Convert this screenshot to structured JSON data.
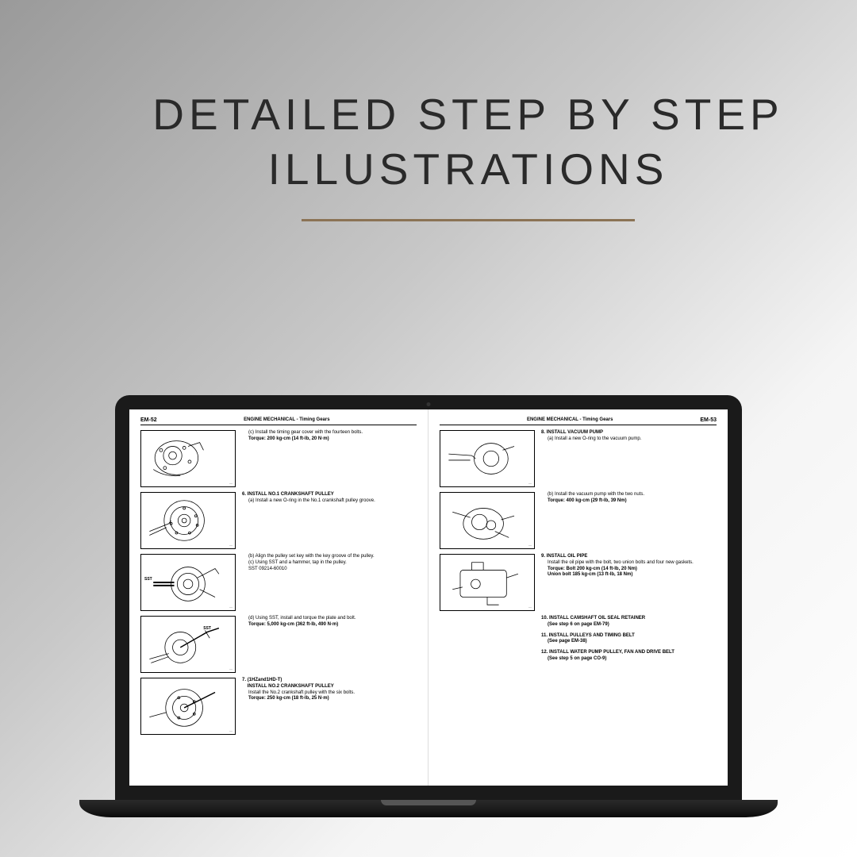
{
  "headline": {
    "line1": "DETAILED STEP BY STEP",
    "line2": "ILLUSTRATIONS"
  },
  "colors": {
    "bg_gradient_start": "#9a9a9a",
    "bg_gradient_end": "#ffffff",
    "underline": "#8b7355",
    "laptop_frame": "#1a1a1a",
    "text": "#2a2a2a"
  },
  "leftPage": {
    "pageNum": "EM-52",
    "title": "ENGINE MECHANICAL - Timing Gears",
    "steps": [
      {
        "diagram": true,
        "lines": [
          "(c)  Install the timing gear cover with the fourteen bolts.",
          "<b>Torque:   200 kg-cm (14 ft-lb, 20 N·m)</b>"
        ]
      },
      {
        "diagram": true,
        "num": "6.",
        "title": "INSTALL NO.1 CRANKSHAFT PULLEY",
        "lines": [
          "(a)  Install a new O-ring in the No.1 crankshaft pulley groove."
        ]
      },
      {
        "diagram": true,
        "sst": "SST",
        "sstPos": "left",
        "lines": [
          "(b)  Align the pulley set key with the key groove of the pulley.",
          "(c)  Using SST and a hammer, tap in the pulley.",
          "SST 09214-60010"
        ]
      },
      {
        "diagram": true,
        "sst": "SST",
        "sstPos": "right",
        "lines": [
          "(d)  Using SST, install and torque the plate and bolt.",
          "<b>Torque:   5,000 kg-cm (362 ft-lb, 490 N·m)</b>"
        ]
      },
      {
        "diagram": true,
        "num": "7.",
        "pretitle": "(1HZand1HD-T)",
        "title": "INSTALL NO.2 CRANKSHAFT PULLEY",
        "lines": [
          "Install the No.2 crankshaft pulley with the six bolts.",
          "<b>Torque:   250 kg-cm (18 ft-lb, 25 N·m)</b>"
        ]
      }
    ]
  },
  "rightPage": {
    "pageNum": "EM-53",
    "title": "ENGINE MECHANICAL - Timing Gears",
    "steps": [
      {
        "diagram": true,
        "num": "8.",
        "title": "INSTALL VACUUM PUMP",
        "lines": [
          "(a)  Install a new O-ring to the vacuum pump."
        ]
      },
      {
        "diagram": true,
        "lines": [
          "(b)  Install the vacuum pump with the two nuts.",
          "<b>Torque:   400 kg-cm (29 ft-lb, 39 Nm)</b>"
        ]
      },
      {
        "diagram": true,
        "num": "9.",
        "title": "INSTALL OIL PIPE",
        "lines": [
          "Install the oil pipe with the bolt, two union bolts and four new gaskets.",
          "<b>Torque:   Bolt           200 kg-cm (14 ft-lb, 20 Nm)</b>",
          "<b>              Union bolt   185 kg-cm (13 ft-lb, 18 Nm)</b>"
        ]
      },
      {
        "diagram": false,
        "num": "10.",
        "title": "INSTALL CAMSHAFT OIL SEAL RETAINER",
        "lines": [
          "<b>(See step 6 on page EM-79)</b>"
        ]
      },
      {
        "diagram": false,
        "num": "11.",
        "title": "INSTALL PULLEYS AND TIMING BELT",
        "lines": [
          "<b>(See page EM-38)</b>"
        ]
      },
      {
        "diagram": false,
        "num": "12.",
        "title": "INSTALL WATER PUMP PULLEY, FAN AND DRIVE BELT",
        "lines": [
          "<b>(See step 5 on page CO-9)</b>"
        ]
      }
    ]
  }
}
